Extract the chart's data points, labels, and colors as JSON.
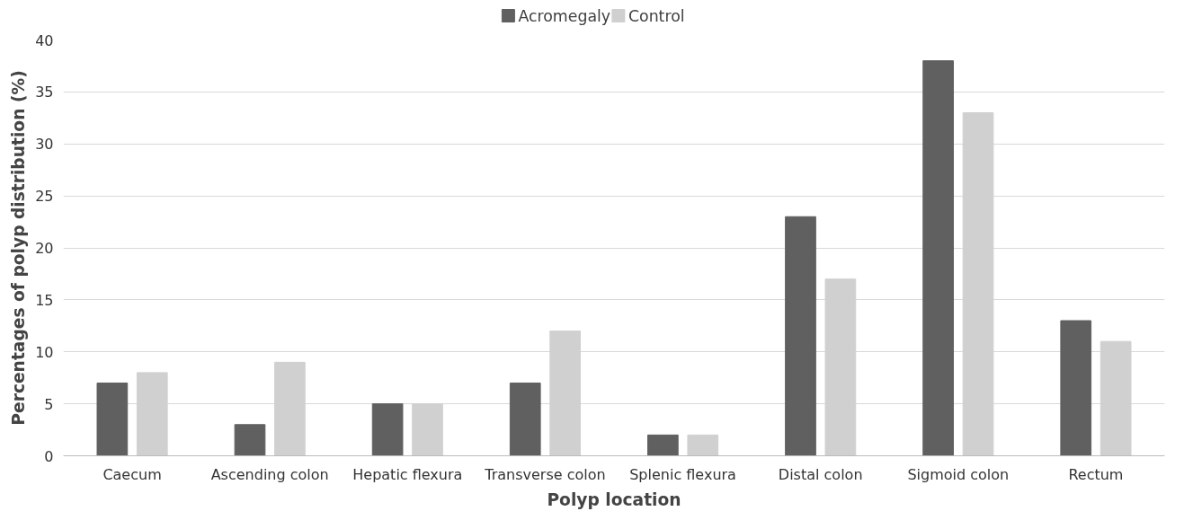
{
  "chart_data": {
    "type": "bar",
    "xlabel": "Polyp location",
    "ylabel": "Percentages of polyp distribution (%)",
    "categories": [
      "Caecum",
      "Ascending colon",
      "Hepatic flexura",
      "Transverse colon",
      "Splenic flexura",
      "Distal colon",
      "Sigmoid colon",
      "Rectum"
    ],
    "series": [
      {
        "name": "Acromegaly",
        "color": "#606060",
        "values": [
          7,
          3,
          5,
          7,
          2,
          23,
          38,
          13
        ]
      },
      {
        "name": "Control",
        "color": "#d0d0d0",
        "values": [
          8,
          9,
          5,
          12,
          2,
          17,
          33,
          11
        ]
      }
    ],
    "ylim": [
      0,
      40
    ],
    "yticks": [
      0,
      5,
      10,
      15,
      20,
      25,
      30,
      35,
      40
    ],
    "grid": "y",
    "legend": "top"
  }
}
